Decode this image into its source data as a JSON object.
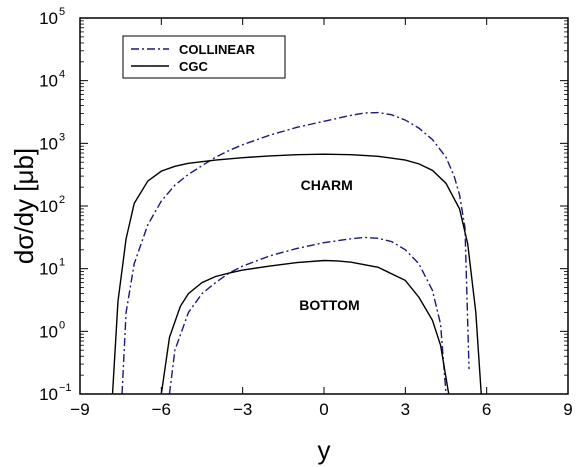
{
  "chart_data": {
    "type": "line",
    "title": "",
    "xlabel": "y",
    "ylabel": "dσ/dy [μb]",
    "xlim": [
      -9,
      9
    ],
    "ylim_log10": [
      -1,
      5
    ],
    "log_y": true,
    "grid": false,
    "legend_position": "top-left",
    "x_ticks": [
      {
        "value": -9,
        "label": "−9"
      },
      {
        "value": -6,
        "label": "−6"
      },
      {
        "value": -3,
        "label": "−3"
      },
      {
        "value": 0,
        "label": "0"
      },
      {
        "value": 3,
        "label": "3"
      },
      {
        "value": 6,
        "label": "6"
      },
      {
        "value": 9,
        "label": "9"
      }
    ],
    "y_ticks": [
      {
        "exp": -1,
        "base": "10",
        "sup": "−1"
      },
      {
        "exp": 0,
        "base": "10",
        "sup": "0"
      },
      {
        "exp": 1,
        "base": "10",
        "sup": "1"
      },
      {
        "exp": 2,
        "base": "10",
        "sup": "2"
      },
      {
        "exp": 3,
        "base": "10",
        "sup": "3"
      },
      {
        "exp": 4,
        "base": "10",
        "sup": "4"
      },
      {
        "exp": 5,
        "base": "10",
        "sup": "5"
      }
    ],
    "series": [
      {
        "name": "COLLINEAR",
        "style": "dashdot",
        "color": "#1a1a7a",
        "group": "charm",
        "points": [
          [
            -7.45,
            0.1
          ],
          [
            -7.3,
            2.0
          ],
          [
            -7.0,
            12
          ],
          [
            -6.5,
            50
          ],
          [
            -6.0,
            120
          ],
          [
            -5.5,
            215
          ],
          [
            -5.0,
            320
          ],
          [
            -4.5,
            440
          ],
          [
            -4.0,
            600
          ],
          [
            -3.5,
            770
          ],
          [
            -3.0,
            950
          ],
          [
            -2.0,
            1350
          ],
          [
            -1.0,
            1800
          ],
          [
            0.0,
            2250
          ],
          [
            1.0,
            2800
          ],
          [
            1.5,
            3050
          ],
          [
            2.0,
            3100
          ],
          [
            2.5,
            2850
          ],
          [
            3.0,
            2350
          ],
          [
            3.5,
            1750
          ],
          [
            4.0,
            1150
          ],
          [
            4.5,
            600
          ],
          [
            4.8,
            300
          ],
          [
            5.0,
            150
          ],
          [
            5.2,
            45
          ],
          [
            5.35,
            0.25
          ]
        ]
      },
      {
        "name": "CGC",
        "style": "solid",
        "color": "#000000",
        "group": "charm",
        "points": [
          [
            -7.8,
            0.1
          ],
          [
            -7.6,
            3.0
          ],
          [
            -7.3,
            30
          ],
          [
            -7.0,
            110
          ],
          [
            -6.5,
            250
          ],
          [
            -6.0,
            360
          ],
          [
            -5.5,
            430
          ],
          [
            -5.0,
            480
          ],
          [
            -4.0,
            540
          ],
          [
            -3.0,
            590
          ],
          [
            -2.0,
            630
          ],
          [
            -1.0,
            660
          ],
          [
            0.0,
            670
          ],
          [
            1.0,
            660
          ],
          [
            2.0,
            620
          ],
          [
            3.0,
            540
          ],
          [
            3.5,
            470
          ],
          [
            4.0,
            370
          ],
          [
            4.5,
            230
          ],
          [
            5.0,
            90
          ],
          [
            5.3,
            25
          ],
          [
            5.6,
            2.0
          ],
          [
            5.8,
            0.1
          ]
        ]
      },
      {
        "name": "COLLINEAR",
        "style": "dashdot",
        "color": "#1a1a7a",
        "group": "bottom",
        "points": [
          [
            -5.7,
            0.1
          ],
          [
            -5.5,
            0.5
          ],
          [
            -5.0,
            2.0
          ],
          [
            -4.5,
            4.0
          ],
          [
            -4.0,
            6.0
          ],
          [
            -3.5,
            8.5
          ],
          [
            -3.0,
            11
          ],
          [
            -2.0,
            16
          ],
          [
            -1.0,
            21
          ],
          [
            0.0,
            26
          ],
          [
            1.0,
            30
          ],
          [
            1.5,
            31.5
          ],
          [
            2.0,
            30.5
          ],
          [
            2.5,
            27
          ],
          [
            3.0,
            20
          ],
          [
            3.5,
            12
          ],
          [
            4.0,
            4.5
          ],
          [
            4.3,
            1.3
          ],
          [
            4.5,
            0.1
          ]
        ]
      },
      {
        "name": "CGC",
        "style": "solid",
        "color": "#000000",
        "group": "bottom",
        "points": [
          [
            -6.0,
            0.1
          ],
          [
            -5.7,
            0.8
          ],
          [
            -5.3,
            2.5
          ],
          [
            -5.0,
            4.0
          ],
          [
            -4.5,
            6.0
          ],
          [
            -4.0,
            7.5
          ],
          [
            -3.5,
            8.5
          ],
          [
            -3.0,
            9.5
          ],
          [
            -2.0,
            11
          ],
          [
            -1.0,
            12.5
          ],
          [
            0.0,
            13.5
          ],
          [
            0.5,
            13.3
          ],
          [
            1.0,
            12.7
          ],
          [
            2.0,
            10.5
          ],
          [
            3.0,
            6.5
          ],
          [
            3.5,
            3.5
          ],
          [
            4.0,
            1.5
          ],
          [
            4.3,
            0.6
          ],
          [
            4.6,
            0.1
          ]
        ]
      }
    ],
    "legend": [
      {
        "label": "COLLINEAR",
        "style": "dashdot",
        "color": "#1a1a7a"
      },
      {
        "label": "CGC",
        "style": "solid",
        "color": "#000000"
      }
    ],
    "annotations": [
      {
        "text": "CHARM",
        "x": 0.1,
        "y": 180
      },
      {
        "text": "BOTTOM",
        "x": 0.2,
        "y": 2.2
      }
    ]
  }
}
